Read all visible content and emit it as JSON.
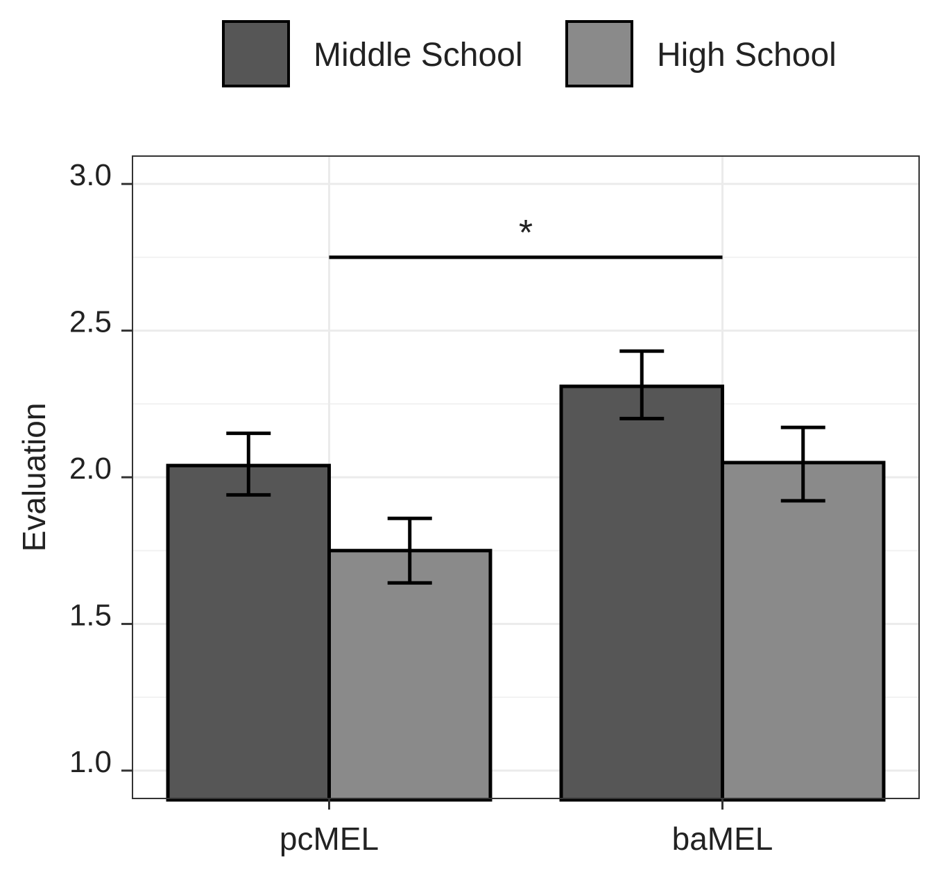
{
  "chart_data": {
    "type": "bar",
    "title": "",
    "xlabel": "",
    "ylabel": "Evaluation",
    "categories": [
      "pcMEL",
      "baMEL"
    ],
    "ylim": [
      0.905,
      3.095
    ],
    "yticks": [
      1.0,
      1.5,
      2.0,
      2.5,
      3.0
    ],
    "ytick_labels": [
      "1.0",
      "1.5",
      "2.0",
      "2.5",
      "3.0"
    ],
    "grid": true,
    "legend_position": "top",
    "series": [
      {
        "name": "Middle School",
        "color": "#565656",
        "values": [
          2.04,
          2.31
        ],
        "error_low": [
          1.94,
          2.2
        ],
        "error_high": [
          2.15,
          2.43
        ]
      },
      {
        "name": "High School",
        "color": "#8a8a8a",
        "values": [
          1.75,
          2.05
        ],
        "error_low": [
          1.64,
          1.92
        ],
        "error_high": [
          1.86,
          2.17
        ]
      }
    ],
    "annotations": [
      {
        "label": "*",
        "from_category": "pcMEL",
        "to_category": "baMEL",
        "y": 2.75
      }
    ]
  }
}
